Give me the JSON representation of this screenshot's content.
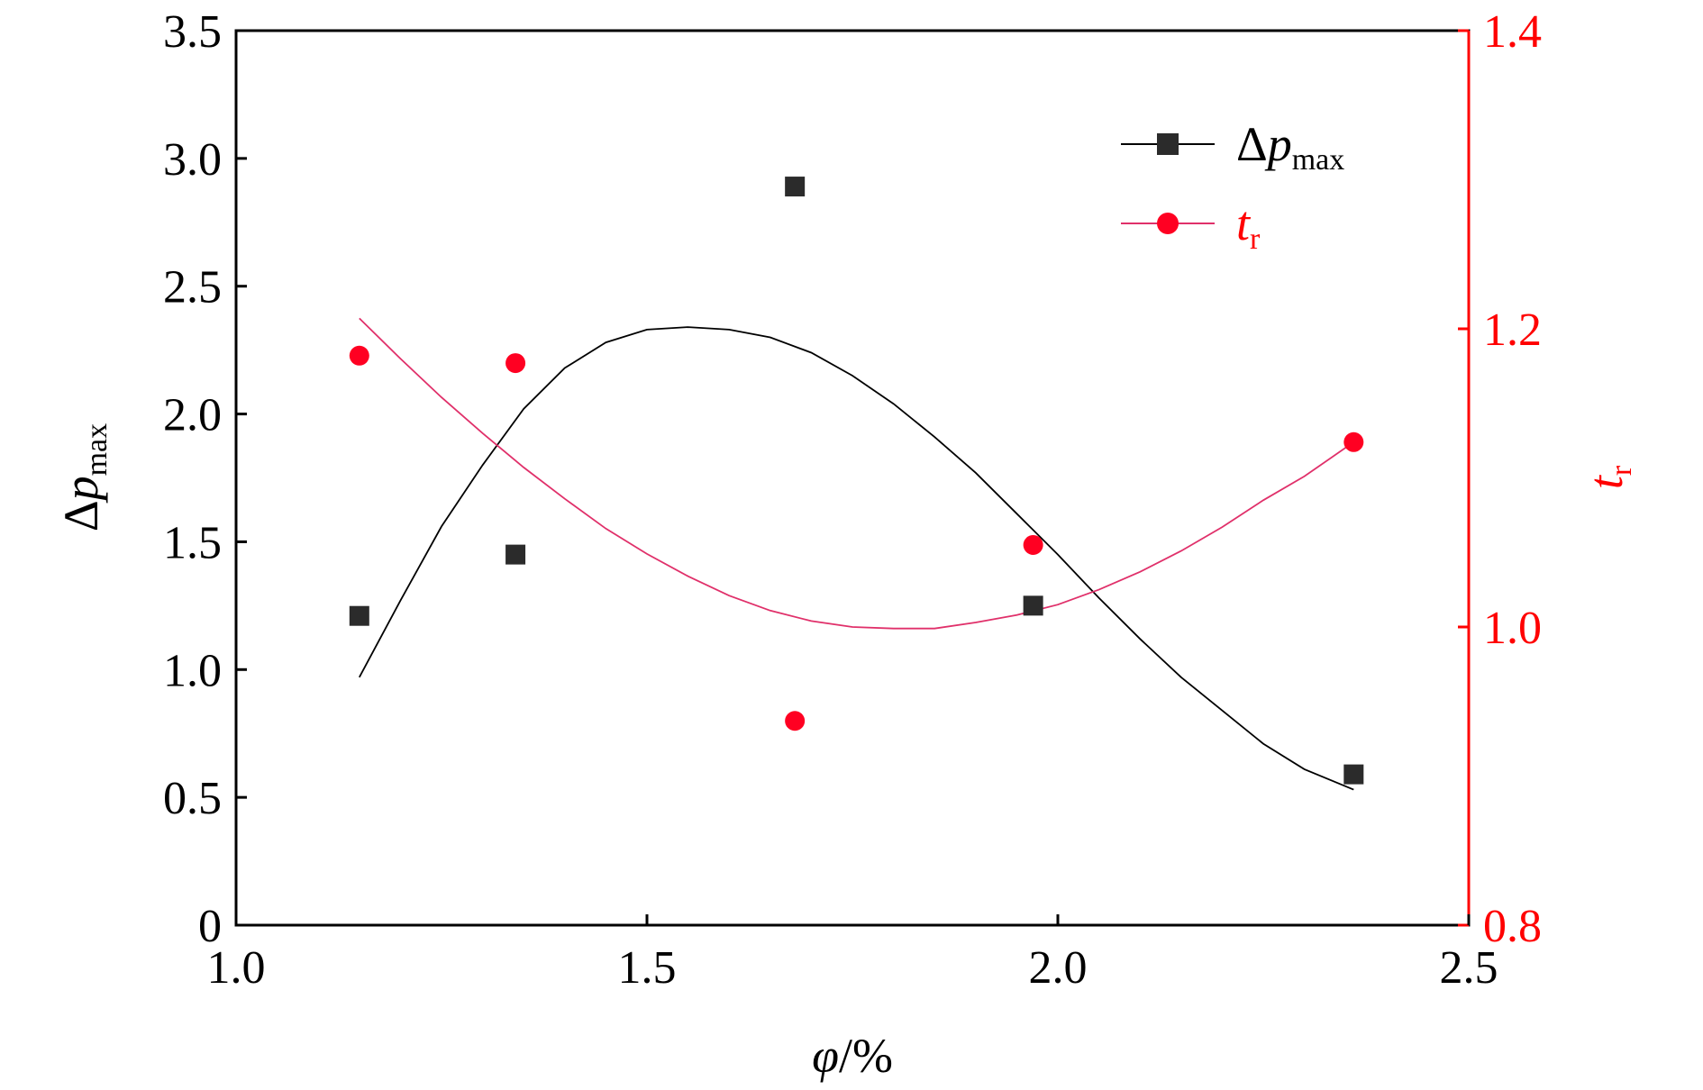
{
  "chart_data": {
    "type": "scatter",
    "xlabel": {
      "main": "φ",
      "rest": "/%"
    },
    "ylabel_left": {
      "prefix": "Δ",
      "main": "p",
      "sub": "max"
    },
    "ylabel_right": {
      "main": "t",
      "sub": "r"
    },
    "xlim": [
      1.0,
      2.5
    ],
    "ylim_left": [
      0,
      3.5
    ],
    "ylim_right": [
      0.8,
      1.4
    ],
    "xticks": [
      1.0,
      1.5,
      2.0,
      2.5
    ],
    "xtick_labels": [
      "1.0",
      "1.5",
      "2.0",
      "2.5"
    ],
    "yticks_left": [
      0,
      0.5,
      1.0,
      1.5,
      2.0,
      2.5,
      3.0,
      3.5
    ],
    "ytick_labels_left": [
      "0",
      "0.5",
      "1.0",
      "1.5",
      "2.0",
      "2.5",
      "3.0",
      "3.5"
    ],
    "yticks_right": [
      0.8,
      1.0,
      1.2,
      1.4
    ],
    "ytick_labels_right": [
      "0.8",
      "1.0",
      "1.2",
      "1.4"
    ],
    "grid": false,
    "legend_position": "top-right",
    "series": [
      {
        "name": "Δp_max",
        "legend": {
          "prefix": "Δ",
          "main": "p",
          "sub": "max"
        },
        "axis": "left",
        "marker": "square",
        "color": "#2b2b2b",
        "x": [
          1.15,
          1.34,
          1.68,
          1.97,
          2.36
        ],
        "y": [
          1.21,
          1.45,
          2.89,
          1.25,
          0.59
        ],
        "fit_curve": {
          "color": "#000000",
          "x": [
            1.15,
            1.2,
            1.25,
            1.3,
            1.35,
            1.4,
            1.45,
            1.5,
            1.55,
            1.6,
            1.65,
            1.7,
            1.75,
            1.8,
            1.85,
            1.9,
            1.95,
            2.0,
            2.05,
            2.1,
            2.15,
            2.2,
            2.25,
            2.3,
            2.36
          ],
          "y": [
            0.97,
            1.27,
            1.56,
            1.8,
            2.02,
            2.18,
            2.28,
            2.33,
            2.34,
            2.33,
            2.3,
            2.24,
            2.15,
            2.04,
            1.91,
            1.77,
            1.61,
            1.45,
            1.28,
            1.12,
            0.97,
            0.84,
            0.71,
            0.61,
            0.53
          ]
        }
      },
      {
        "name": "t_r",
        "legend": {
          "main": "t",
          "sub": "r"
        },
        "axis": "right",
        "marker": "circle",
        "color": "#ff0022",
        "x": [
          1.15,
          1.34,
          1.68,
          1.97,
          2.36
        ],
        "y": [
          1.182,
          1.177,
          0.937,
          1.055,
          1.124
        ],
        "fit_curve": {
          "color": "#e0306a",
          "x": [
            1.15,
            1.2,
            1.25,
            1.3,
            1.35,
            1.4,
            1.45,
            1.5,
            1.55,
            1.6,
            1.65,
            1.7,
            1.75,
            1.8,
            1.85,
            1.9,
            1.95,
            2.0,
            2.05,
            2.1,
            2.15,
            2.2,
            2.25,
            2.3,
            2.36
          ],
          "y": [
            1.207,
            1.18,
            1.154,
            1.13,
            1.107,
            1.086,
            1.066,
            1.049,
            1.034,
            1.021,
            1.011,
            1.004,
            1.0,
            0.999,
            0.999,
            1.003,
            1.008,
            1.015,
            1.025,
            1.037,
            1.051,
            1.067,
            1.085,
            1.101,
            1.124
          ]
        }
      }
    ]
  }
}
